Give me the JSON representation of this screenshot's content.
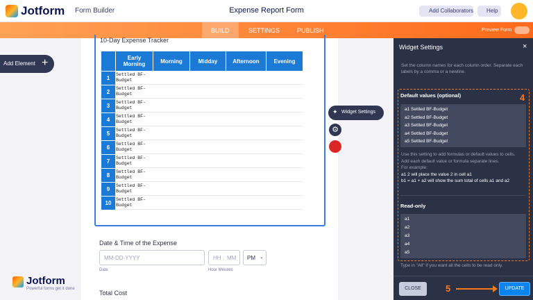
{
  "header": {
    "logo": "Jotform",
    "builder": "Form Builder",
    "title": "Expense Report Form",
    "collaborators": "Add Collaborators",
    "help": "Help"
  },
  "tabs": [
    "BUILD",
    "SETTINGS",
    "PUBLISH"
  ],
  "preview": "Preview Form",
  "add_element": "Add Element",
  "widget": {
    "title": "10-Day Expense Tracker",
    "columns": [
      "Early Morning",
      "Morning",
      "Midday",
      "Afternoon",
      "Evening"
    ],
    "rows": [
      [
        "1",
        "Settled BF-Budget"
      ],
      [
        "2",
        "Settled BF-Budget"
      ],
      [
        "3",
        "Settled BF-Budget"
      ],
      [
        "4",
        "Settled BF-Budget"
      ],
      [
        "5",
        "Settled BF-Budget"
      ],
      [
        "6",
        "Settled BF-Budget"
      ],
      [
        "7",
        "Settled BF-Budget"
      ],
      [
        "8",
        "Settled BF-Budget"
      ],
      [
        "9",
        "Settled BF-Budget"
      ],
      [
        "10",
        "Settled BF-Budget"
      ]
    ],
    "settings_button": "Widget Settings"
  },
  "date_field": {
    "label": "Date & Time of the Expense",
    "date_placeholder": "MM-DD-YYYY",
    "hour_placeholder": "HH",
    "minute_placeholder": "MM",
    "ampm": "PM",
    "date_sublabel": "Date",
    "time_sublabel": "Hour Minutes"
  },
  "total_cost": "Total Cost",
  "footer_logo": {
    "name": "Jotform",
    "tagline": "Powerful forms get it done"
  },
  "panel": {
    "title": "Widget Settings",
    "description": "Set the column names for each column order. Separate each labels by a comma or a newline.",
    "default_label": "Default values (optional)",
    "default_values": [
      "a1 Settled BF-Budget",
      "a2 Settled BF-Budget",
      "a3 Settled BF-Budget",
      "a4 Settled BF-Budget",
      "a5 Settled BF-Budget"
    ],
    "help": [
      "Use this setting to add formulas or default values to cells.",
      "Add each default value or formula separate lines.",
      "For example:",
      "a1 2 will place the value 2 in cell a1",
      "b1 = a1 + a2 will show the sum total of cells a1 and a2"
    ],
    "readonly_label": "Read-only",
    "readonly_values": [
      "a1",
      "a2",
      "a3",
      "a4",
      "a5"
    ],
    "readonly_note": "Type in \"All\" if you want all the cells to be read only.",
    "close": "CLOSE",
    "update": "UPDATE"
  },
  "annotations": [
    "4",
    "5"
  ]
}
